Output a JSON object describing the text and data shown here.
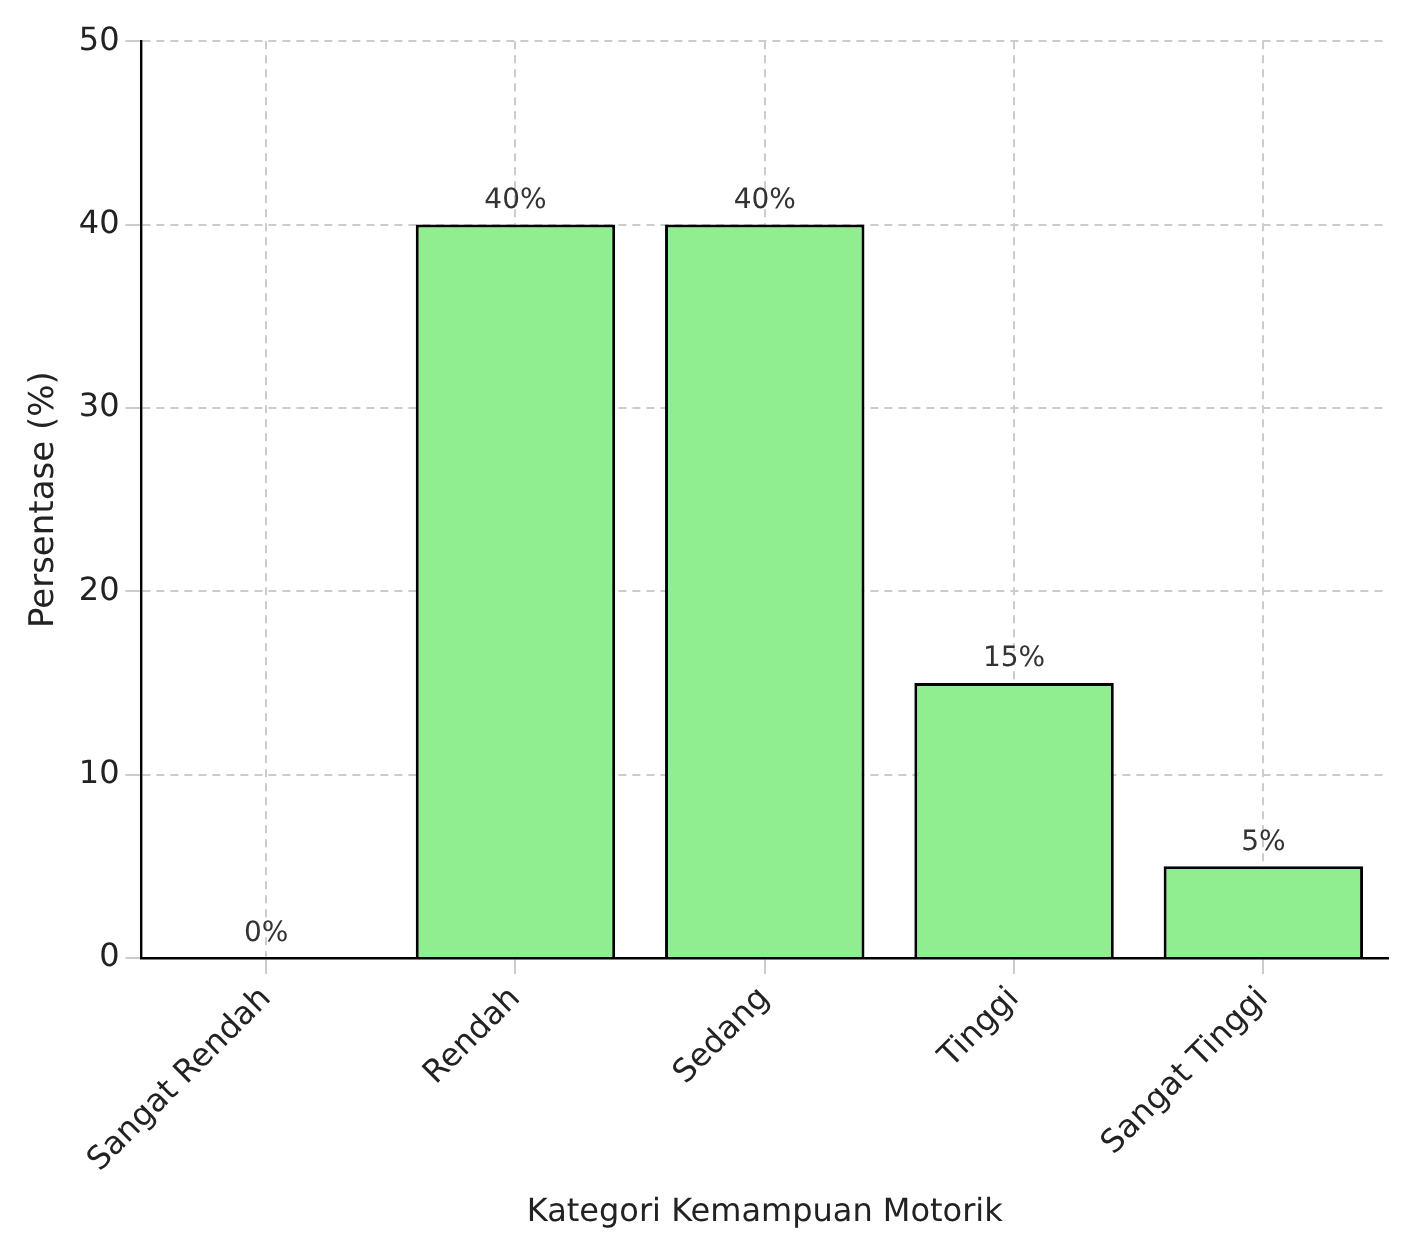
{
  "chart_data": {
    "type": "bar",
    "xlabel": "Kategori Kemampuan Motorik",
    "ylabel": "Persentase (%)",
    "categories": [
      "Sangat Rendah",
      "Rendah",
      "Sedang",
      "Tinggi",
      "Sangat Tinggi"
    ],
    "values": [
      0,
      40,
      40,
      15,
      5
    ],
    "value_labels": [
      "0%",
      "40%",
      "40%",
      "15%",
      "5%"
    ],
    "color": "#90ee90",
    "ylim": [
      0,
      50
    ],
    "yticks": [
      0,
      10,
      20,
      30,
      40,
      50
    ],
    "grid": true
  }
}
